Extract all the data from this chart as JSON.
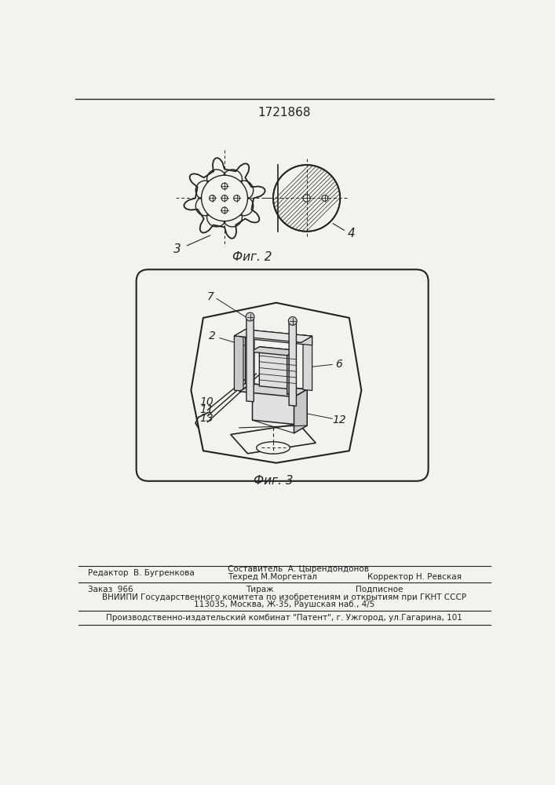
{
  "patent_number": "1721868",
  "fig2_caption": "Фиг. 2",
  "fig3_caption": "Фиг. 3",
  "label3": "3",
  "label4": "4",
  "label2": "2",
  "label6": "6",
  "label7": "7",
  "label10": "10",
  "label11": "11",
  "label12": "12",
  "label13": "13",
  "footer_line1_left": "Редактор  В. Бугренкова",
  "footer_line1_mid": "Составитель  А. Цырендондонов",
  "footer_line1_mid2": "Техред М.Моргентал",
  "footer_line1_right": "Корректор Н. Ревская",
  "footer_line2_left": "Заказ  966",
  "footer_line2_mid": "Тираж",
  "footer_line2_right": "Подписное",
  "footer_line3": "ВНИИПИ Государственного комитета по изобретениям и открытиям при ГКНТ СССР",
  "footer_line4": "113035, Москва, Ж-35, Раушская наб., 4/5",
  "footer_line5": "Производственно-издательский комбинат \"Патент\", г. Ужгород, ул.Гагарина, 101",
  "bg_color": "#f2f2ee",
  "line_color": "#222222",
  "text_color": "#222222"
}
